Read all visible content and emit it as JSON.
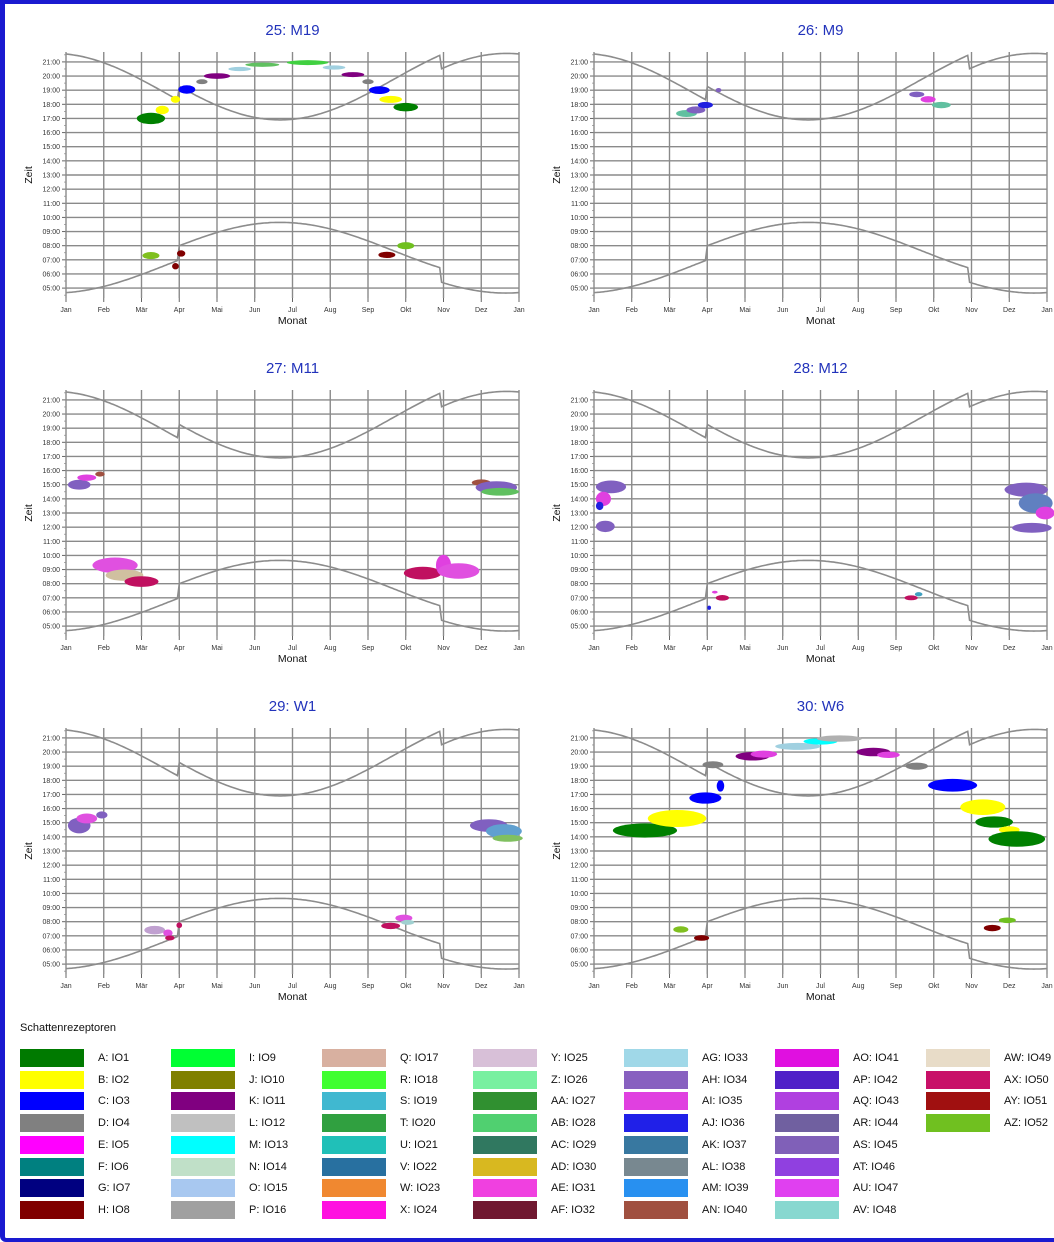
{
  "months": [
    "Jan",
    "Feb",
    "Mär",
    "Apr",
    "Mai",
    "Jun",
    "Jul",
    "Aug",
    "Sep",
    "Okt",
    "Nov",
    "Dez",
    "Jan"
  ],
  "y_ticks": [
    "05:00",
    "06:00",
    "07:00",
    "08:00",
    "09:00",
    "10:00",
    "11:00",
    "12:00",
    "13:00",
    "14:00",
    "15:00",
    "16:00",
    "17:00",
    "18:00",
    "19:00",
    "20:00",
    "21:00"
  ],
  "x_axis_label": "Monat",
  "y_axis_label": "Zeit",
  "chart_data": [
    {
      "type": "scatter",
      "title": "25: M19",
      "xlabel": "Monat",
      "ylabel": "Zeit",
      "xlim": [
        0,
        12
      ],
      "ylim": [
        4.3,
        21.7
      ],
      "blobs": [
        {
          "x": 2.25,
          "y": 17.0,
          "w": 0.75,
          "h": 0.8,
          "color": "#008000"
        },
        {
          "x": 2.55,
          "y": 17.6,
          "w": 0.35,
          "h": 0.6,
          "color": "#ffff00"
        },
        {
          "x": 2.9,
          "y": 18.35,
          "w": 0.25,
          "h": 0.5,
          "color": "#ffff00"
        },
        {
          "x": 3.2,
          "y": 19.05,
          "w": 0.45,
          "h": 0.6,
          "color": "#0000ff"
        },
        {
          "x": 3.6,
          "y": 19.6,
          "w": 0.3,
          "h": 0.35,
          "color": "#808080"
        },
        {
          "x": 4.0,
          "y": 20.0,
          "w": 0.7,
          "h": 0.4,
          "color": "#800080"
        },
        {
          "x": 4.6,
          "y": 20.5,
          "w": 0.6,
          "h": 0.3,
          "color": "#a0d0e0"
        },
        {
          "x": 5.2,
          "y": 20.8,
          "w": 0.9,
          "h": 0.3,
          "color": "#60c060"
        },
        {
          "x": 6.4,
          "y": 20.95,
          "w": 1.1,
          "h": 0.35,
          "color": "#40d040"
        },
        {
          "x": 7.1,
          "y": 20.6,
          "w": 0.6,
          "h": 0.3,
          "color": "#a0d0e0"
        },
        {
          "x": 7.6,
          "y": 20.1,
          "w": 0.6,
          "h": 0.35,
          "color": "#800080"
        },
        {
          "x": 8.0,
          "y": 19.6,
          "w": 0.3,
          "h": 0.35,
          "color": "#808080"
        },
        {
          "x": 8.3,
          "y": 19.0,
          "w": 0.55,
          "h": 0.55,
          "color": "#0000ff"
        },
        {
          "x": 8.6,
          "y": 18.35,
          "w": 0.6,
          "h": 0.5,
          "color": "#ffff00"
        },
        {
          "x": 9.0,
          "y": 17.8,
          "w": 0.65,
          "h": 0.6,
          "color": "#008000"
        },
        {
          "x": 2.25,
          "y": 7.3,
          "w": 0.45,
          "h": 0.5,
          "color": "#80c020"
        },
        {
          "x": 2.9,
          "y": 6.55,
          "w": 0.18,
          "h": 0.45,
          "color": "#800000"
        },
        {
          "x": 3.05,
          "y": 7.45,
          "w": 0.22,
          "h": 0.45,
          "color": "#800000"
        },
        {
          "x": 8.5,
          "y": 7.35,
          "w": 0.45,
          "h": 0.45,
          "color": "#800000"
        },
        {
          "x": 9.0,
          "y": 8.0,
          "w": 0.45,
          "h": 0.5,
          "color": "#70c020"
        }
      ]
    },
    {
      "type": "scatter",
      "title": "26: M9",
      "xlabel": "Monat",
      "ylabel": "Zeit",
      "xlim": [
        0,
        12
      ],
      "ylim": [
        4.3,
        21.7
      ],
      "blobs": [
        {
          "x": 2.45,
          "y": 17.35,
          "w": 0.55,
          "h": 0.5,
          "color": "#60c0a0"
        },
        {
          "x": 2.7,
          "y": 17.6,
          "w": 0.5,
          "h": 0.5,
          "color": "#8060c0"
        },
        {
          "x": 2.95,
          "y": 17.95,
          "w": 0.4,
          "h": 0.45,
          "color": "#2020e0"
        },
        {
          "x": 3.3,
          "y": 19.0,
          "w": 0.15,
          "h": 0.3,
          "color": "#8060c0"
        },
        {
          "x": 8.55,
          "y": 18.7,
          "w": 0.4,
          "h": 0.4,
          "color": "#8060c0"
        },
        {
          "x": 8.85,
          "y": 18.35,
          "w": 0.4,
          "h": 0.45,
          "color": "#e040e0"
        },
        {
          "x": 9.2,
          "y": 17.95,
          "w": 0.5,
          "h": 0.45,
          "color": "#60c0a0"
        }
      ]
    },
    {
      "type": "scatter",
      "title": "27: M11",
      "xlabel": "Monat",
      "ylabel": "Zeit",
      "xlim": [
        0,
        12
      ],
      "ylim": [
        4.3,
        21.7
      ],
      "blobs": [
        {
          "x": 0.35,
          "y": 15.0,
          "w": 0.6,
          "h": 0.7,
          "color": "#8060c0"
        },
        {
          "x": 0.55,
          "y": 15.5,
          "w": 0.5,
          "h": 0.45,
          "color": "#e040e0"
        },
        {
          "x": 0.9,
          "y": 15.75,
          "w": 0.25,
          "h": 0.35,
          "color": "#a05040"
        },
        {
          "x": 1.3,
          "y": 9.3,
          "w": 1.2,
          "h": 1.1,
          "color": "#e050e0"
        },
        {
          "x": 1.55,
          "y": 8.6,
          "w": 1.0,
          "h": 0.8,
          "color": "#d0c0a0"
        },
        {
          "x": 2.0,
          "y": 8.15,
          "w": 0.9,
          "h": 0.75,
          "color": "#c01060"
        },
        {
          "x": 11.0,
          "y": 15.15,
          "w": 0.5,
          "h": 0.45,
          "color": "#a05040"
        },
        {
          "x": 11.4,
          "y": 14.8,
          "w": 1.1,
          "h": 0.9,
          "color": "#8060c0"
        },
        {
          "x": 11.5,
          "y": 14.5,
          "w": 1.0,
          "h": 0.55,
          "color": "#60c060"
        },
        {
          "x": 9.45,
          "y": 8.75,
          "w": 1.0,
          "h": 0.9,
          "color": "#c01060"
        },
        {
          "x": 10.0,
          "y": 9.3,
          "w": 0.4,
          "h": 1.5,
          "color": "#e040e0"
        },
        {
          "x": 10.4,
          "y": 8.9,
          "w": 1.1,
          "h": 1.1,
          "color": "#e050e0"
        }
      ]
    },
    {
      "type": "scatter",
      "title": "28: M12",
      "xlabel": "Monat",
      "ylabel": "Zeit",
      "xlim": [
        0,
        12
      ],
      "ylim": [
        4.3,
        21.7
      ],
      "blobs": [
        {
          "x": 0.45,
          "y": 14.85,
          "w": 0.8,
          "h": 0.9,
          "color": "#8060c0"
        },
        {
          "x": 0.25,
          "y": 14.0,
          "w": 0.4,
          "h": 1.0,
          "color": "#e040e0"
        },
        {
          "x": 0.15,
          "y": 13.5,
          "w": 0.2,
          "h": 0.6,
          "color": "#2020e0"
        },
        {
          "x": 0.3,
          "y": 12.05,
          "w": 0.5,
          "h": 0.8,
          "color": "#8060c0"
        },
        {
          "x": 3.4,
          "y": 7.0,
          "w": 0.35,
          "h": 0.4,
          "color": "#c01060"
        },
        {
          "x": 3.2,
          "y": 7.4,
          "w": 0.15,
          "h": 0.2,
          "color": "#e040e0"
        },
        {
          "x": 3.05,
          "y": 6.3,
          "w": 0.1,
          "h": 0.3,
          "color": "#2020e0"
        },
        {
          "x": 8.4,
          "y": 7.0,
          "w": 0.35,
          "h": 0.35,
          "color": "#c01060"
        },
        {
          "x": 8.6,
          "y": 7.25,
          "w": 0.2,
          "h": 0.3,
          "color": "#40a0c0"
        },
        {
          "x": 11.45,
          "y": 14.65,
          "w": 1.15,
          "h": 1.0,
          "color": "#8060c0"
        },
        {
          "x": 11.7,
          "y": 13.7,
          "w": 0.9,
          "h": 1.4,
          "color": "#6080c0"
        },
        {
          "x": 11.95,
          "y": 13.0,
          "w": 0.5,
          "h": 0.9,
          "color": "#e040e0"
        },
        {
          "x": 11.6,
          "y": 11.95,
          "w": 1.05,
          "h": 0.7,
          "color": "#8060c0"
        }
      ]
    },
    {
      "type": "scatter",
      "title": "29: W1",
      "xlabel": "Monat",
      "ylabel": "Zeit",
      "xlim": [
        0,
        12
      ],
      "ylim": [
        4.3,
        21.7
      ],
      "blobs": [
        {
          "x": 0.35,
          "y": 14.8,
          "w": 0.6,
          "h": 1.1,
          "color": "#8060c0"
        },
        {
          "x": 0.55,
          "y": 15.3,
          "w": 0.55,
          "h": 0.7,
          "color": "#e050e0"
        },
        {
          "x": 0.95,
          "y": 15.55,
          "w": 0.3,
          "h": 0.5,
          "color": "#8060c0"
        },
        {
          "x": 2.35,
          "y": 7.4,
          "w": 0.55,
          "h": 0.6,
          "color": "#c0a0d0"
        },
        {
          "x": 2.7,
          "y": 7.2,
          "w": 0.25,
          "h": 0.5,
          "color": "#e050e0"
        },
        {
          "x": 2.75,
          "y": 6.85,
          "w": 0.25,
          "h": 0.35,
          "color": "#c01060"
        },
        {
          "x": 3.0,
          "y": 7.75,
          "w": 0.15,
          "h": 0.4,
          "color": "#c01060"
        },
        {
          "x": 8.6,
          "y": 7.7,
          "w": 0.5,
          "h": 0.45,
          "color": "#c01060"
        },
        {
          "x": 8.95,
          "y": 8.25,
          "w": 0.45,
          "h": 0.5,
          "color": "#e050e0"
        },
        {
          "x": 9.05,
          "y": 7.95,
          "w": 0.35,
          "h": 0.35,
          "color": "#a0d0d0"
        },
        {
          "x": 11.2,
          "y": 14.8,
          "w": 1.0,
          "h": 0.9,
          "color": "#8060c0"
        },
        {
          "x": 11.6,
          "y": 14.4,
          "w": 0.95,
          "h": 1.0,
          "color": "#60a0d0"
        },
        {
          "x": 11.7,
          "y": 13.9,
          "w": 0.8,
          "h": 0.5,
          "color": "#80c060"
        }
      ]
    },
    {
      "type": "scatter",
      "title": "30: W6",
      "xlabel": "Monat",
      "ylabel": "Zeit",
      "xlim": [
        0,
        12
      ],
      "ylim": [
        4.3,
        21.7
      ],
      "blobs": [
        {
          "x": 1.35,
          "y": 14.45,
          "w": 1.7,
          "h": 1.0,
          "color": "#008000"
        },
        {
          "x": 2.2,
          "y": 15.3,
          "w": 1.55,
          "h": 1.2,
          "color": "#ffff00"
        },
        {
          "x": 2.95,
          "y": 16.75,
          "w": 0.85,
          "h": 0.8,
          "color": "#0000ff"
        },
        {
          "x": 3.35,
          "y": 17.6,
          "w": 0.2,
          "h": 0.8,
          "color": "#0000ff"
        },
        {
          "x": 3.15,
          "y": 19.1,
          "w": 0.55,
          "h": 0.5,
          "color": "#808080"
        },
        {
          "x": 4.2,
          "y": 19.7,
          "w": 0.9,
          "h": 0.6,
          "color": "#800080"
        },
        {
          "x": 4.5,
          "y": 19.85,
          "w": 0.7,
          "h": 0.5,
          "color": "#e040e0"
        },
        {
          "x": 5.4,
          "y": 20.4,
          "w": 1.2,
          "h": 0.5,
          "color": "#a0d0e0"
        },
        {
          "x": 6.0,
          "y": 20.75,
          "w": 0.9,
          "h": 0.45,
          "color": "#00ffff"
        },
        {
          "x": 6.5,
          "y": 20.95,
          "w": 1.2,
          "h": 0.45,
          "color": "#b0b0b0"
        },
        {
          "x": 7.4,
          "y": 20.0,
          "w": 0.9,
          "h": 0.6,
          "color": "#800080"
        },
        {
          "x": 7.8,
          "y": 19.8,
          "w": 0.6,
          "h": 0.45,
          "color": "#e040e0"
        },
        {
          "x": 8.55,
          "y": 19.0,
          "w": 0.6,
          "h": 0.5,
          "color": "#808080"
        },
        {
          "x": 9.5,
          "y": 17.65,
          "w": 1.3,
          "h": 0.9,
          "color": "#0000ff"
        },
        {
          "x": 10.3,
          "y": 16.1,
          "w": 1.2,
          "h": 1.1,
          "color": "#ffff00"
        },
        {
          "x": 10.6,
          "y": 15.05,
          "w": 1.0,
          "h": 0.8,
          "color": "#008000"
        },
        {
          "x": 11.0,
          "y": 14.5,
          "w": 0.55,
          "h": 0.5,
          "color": "#ffff00"
        },
        {
          "x": 11.2,
          "y": 13.85,
          "w": 1.5,
          "h": 1.1,
          "color": "#008000"
        },
        {
          "x": 2.3,
          "y": 7.45,
          "w": 0.4,
          "h": 0.45,
          "color": "#80c020"
        },
        {
          "x": 2.85,
          "y": 6.85,
          "w": 0.4,
          "h": 0.4,
          "color": "#800000"
        },
        {
          "x": 10.55,
          "y": 7.55,
          "w": 0.45,
          "h": 0.45,
          "color": "#800000"
        },
        {
          "x": 10.95,
          "y": 8.1,
          "w": 0.45,
          "h": 0.4,
          "color": "#70c020"
        }
      ]
    }
  ],
  "legend": {
    "title": "Schattenrezeptoren",
    "items": [
      {
        "label": "A: IO1",
        "color": "#007a00"
      },
      {
        "label": "B: IO2",
        "color": "#ffff00"
      },
      {
        "label": "C: IO3",
        "color": "#0000ff"
      },
      {
        "label": "D: IO4",
        "color": "#808080"
      },
      {
        "label": "E: IO5",
        "color": "#ff00ff"
      },
      {
        "label": "F: IO6",
        "color": "#008080"
      },
      {
        "label": "G: IO7",
        "color": "#000080"
      },
      {
        "label": "H: IO8",
        "color": "#800000"
      },
      {
        "label": "I: IO9",
        "color": "#00ff33"
      },
      {
        "label": "J: IO10",
        "color": "#808000"
      },
      {
        "label": "K: IO11",
        "color": "#800080"
      },
      {
        "label": "L: IO12",
        "color": "#c0c0c0"
      },
      {
        "label": "M: IO13",
        "color": "#00ffff"
      },
      {
        "label": "N: IO14",
        "color": "#c0e0c8"
      },
      {
        "label": "O: IO15",
        "color": "#a8c8f0"
      },
      {
        "label": "P: IO16",
        "color": "#a0a0a0"
      },
      {
        "label": "Q: IO17",
        "color": "#d8b0a0"
      },
      {
        "label": "R: IO18",
        "color": "#40ff30"
      },
      {
        "label": "S: IO19",
        "color": "#40b8d0"
      },
      {
        "label": "T: IO20",
        "color": "#30a040"
      },
      {
        "label": "U: IO21",
        "color": "#20c0b8"
      },
      {
        "label": "V: IO22",
        "color": "#2870a0"
      },
      {
        "label": "W: IO23",
        "color": "#f08830"
      },
      {
        "label": "X: IO24",
        "color": "#ff10e0"
      },
      {
        "label": "Y: IO25",
        "color": "#d8c0d8"
      },
      {
        "label": "Z: IO26",
        "color": "#78f0a0"
      },
      {
        "label": "AA: IO27",
        "color": "#309030"
      },
      {
        "label": "AB: IO28",
        "color": "#50d070"
      },
      {
        "label": "AC: IO29",
        "color": "#307860"
      },
      {
        "label": "AD: IO30",
        "color": "#d8b820"
      },
      {
        "label": "AE: IO31",
        "color": "#f040e0"
      },
      {
        "label": "AF: IO32",
        "color": "#701830"
      },
      {
        "label": "AG: IO33",
        "color": "#a0d8e8"
      },
      {
        "label": "AH: IO34",
        "color": "#8860c0"
      },
      {
        "label": "AI: IO35",
        "color": "#e040e0"
      },
      {
        "label": "AJ: IO36",
        "color": "#2020e8"
      },
      {
        "label": "AK: IO37",
        "color": "#3878a0"
      },
      {
        "label": "AL: IO38",
        "color": "#788890"
      },
      {
        "label": "AM: IO39",
        "color": "#2890f0"
      },
      {
        "label": "AN: IO40",
        "color": "#a05040"
      },
      {
        "label": "AO: IO41",
        "color": "#e010e0"
      },
      {
        "label": "AP: IO42",
        "color": "#5020c8"
      },
      {
        "label": "AQ: IO43",
        "color": "#b040e0"
      },
      {
        "label": "AR: IO44",
        "color": "#7060a0"
      },
      {
        "label": "AS: IO45",
        "color": "#8060b8"
      },
      {
        "label": "AT: IO46",
        "color": "#9040e0"
      },
      {
        "label": "AU: IO47",
        "color": "#e040f0"
      },
      {
        "label": "AV: IO48",
        "color": "#88d8d0"
      },
      {
        "label": "AW: IO49",
        "color": "#e8dcc8"
      },
      {
        "label": "AX: IO50",
        "color": "#c81068"
      },
      {
        "label": "AY: IO51",
        "color": "#a01010"
      },
      {
        "label": "AZ: IO52",
        "color": "#70c020"
      }
    ]
  }
}
